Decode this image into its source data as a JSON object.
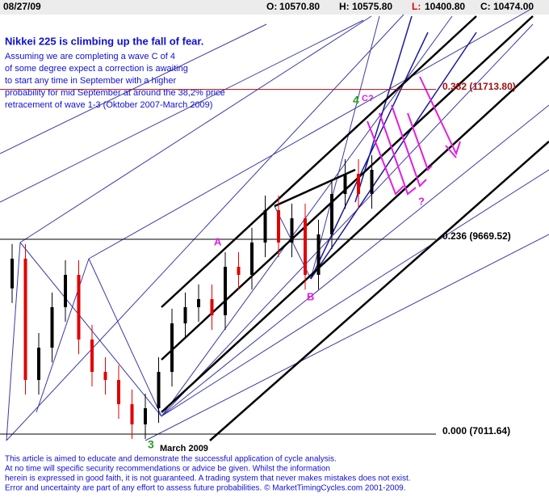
{
  "chart_data": {
    "type": "candlestick",
    "header": {
      "date": "08/27/09",
      "ohlc": [
        {
          "label": "O:",
          "value": "10570.80"
        },
        {
          "label": "H:",
          "value": "10575.80"
        },
        {
          "label": "L:",
          "value": "10400.80"
        },
        {
          "label": "C:",
          "value": "10474.00"
        }
      ]
    },
    "title": "Nikkei 225 is climbing up the fall of fear.",
    "subtitle": [
      "Assuming we are completing a wave C of 4",
      "of some degree expect a correction is awaiting",
      "to start any time in September with a higher",
      "probability for mid September at around the 38,2% price",
      "retracement of wave 1-3 (Oktober 2007-March 2009)"
    ],
    "categories": [
      null,
      null,
      null,
      null,
      null,
      null,
      null,
      null,
      null,
      null,
      null,
      null,
      null,
      null,
      null,
      null,
      null,
      null,
      null,
      null,
      null,
      null,
      null,
      null,
      null,
      null,
      null,
      null
    ],
    "open": [
      9000,
      9405,
      7750,
      8190,
      8743,
      9184,
      8302,
      7860,
      7750,
      7419,
      7144,
      7364,
      7860,
      8522,
      8743,
      8853,
      8633,
      9294,
      9184,
      9625,
      10067,
      9625,
      9956,
      9184,
      9736,
      10287,
      10563,
      10287
    ],
    "high": [
      9605,
      9605,
      8390,
      8943,
      9384,
      9384,
      8502,
      8060,
      7950,
      7619,
      7564,
      8060,
      8722,
      8943,
      9053,
      9053,
      9494,
      9494,
      9825,
      10267,
      10267,
      10156,
      10156,
      9936,
      10487,
      10763,
      10763,
      10818
    ],
    "low": [
      8800,
      7550,
      7550,
      7990,
      8543,
      8102,
      7660,
      7550,
      7219,
      6944,
      6944,
      7164,
      7660,
      8322,
      8543,
      8433,
      8433,
      8984,
      8984,
      9425,
      9425,
      9425,
      8984,
      8984,
      9536,
      10087,
      10087,
      10087
    ],
    "close": [
      9405,
      7750,
      8190,
      8743,
      9184,
      8302,
      7860,
      7750,
      7419,
      7144,
      7364,
      7860,
      8522,
      8743,
      8853,
      8633,
      9294,
      9184,
      9625,
      10067,
      9625,
      9956,
      9184,
      9736,
      10287,
      10563,
      10287,
      10618
    ],
    "up_color": "#000000",
    "down_color": "#e00000",
    "ylim": [
      6923,
      12736
    ],
    "levels": [
      {
        "value": 11713.8,
        "label": "0.382 (11713.80)",
        "color": "#a01010"
      },
      {
        "value": 9669.52,
        "label": "0.236 (9669.52)",
        "color": "#000000"
      },
      {
        "value": 7011.64,
        "label": "0.000 (7011.64)",
        "color": "#000000"
      }
    ],
    "annotations": [
      {
        "text": "4",
        "color": "#2a9a2a"
      },
      {
        "text": "C?",
        "color": "#e020e0"
      },
      {
        "text": "A",
        "color": "#e020e0"
      },
      {
        "text": "B",
        "color": "#e020e0"
      },
      {
        "text": "?",
        "color": "#e020e0"
      },
      {
        "text": "3",
        "color": "#2a9a2a"
      },
      {
        "text": "March 2009",
        "color": "#000000"
      }
    ],
    "footer": [
      "This article is aimed to educate and demonstrate the successful application of cycle analysis.",
      "At no time will specific security recommendations or advice be given. Whilst the information",
      "herein is expressed in good faith, it is not guaranteed. A trading system that never makes mistakes does not exist.",
      "Error and uncertainty are part of any effort to assess future probabilities. © MarketTimingCycles.com 2001-2009."
    ]
  }
}
